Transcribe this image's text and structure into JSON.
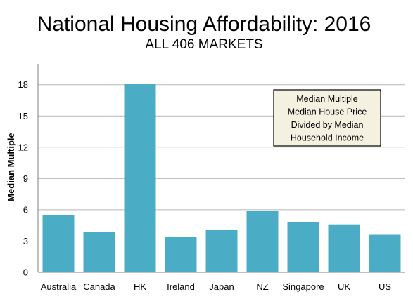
{
  "chart_data": {
    "type": "bar",
    "title": "National Housing Affordability: 2016",
    "subtitle": "ALL 406 MARKETS",
    "xlabel": "",
    "ylabel": "Median Multiple",
    "categories": [
      "Australia",
      "Canada",
      "HK",
      "Ireland",
      "Japan",
      "NZ",
      "Singapore",
      "UK",
      "US"
    ],
    "values": [
      5.5,
      3.9,
      18.1,
      3.4,
      4.1,
      5.9,
      4.8,
      4.6,
      3.6
    ],
    "ylim": [
      0,
      20
    ],
    "yticks": [
      "0",
      "3",
      "6",
      "9",
      "12",
      "15",
      "18"
    ],
    "grid": true,
    "legend_box": {
      "position": "top-right",
      "lines": [
        "Median Multiple",
        "Median House Price",
        "Divided by Median",
        "Household Income"
      ]
    },
    "colors": {
      "bar": "#4badc5",
      "grid": "#b8b8b8",
      "axis": "#808080",
      "legend_fill": "#f4f1e1",
      "legend_border": "#000000"
    }
  }
}
